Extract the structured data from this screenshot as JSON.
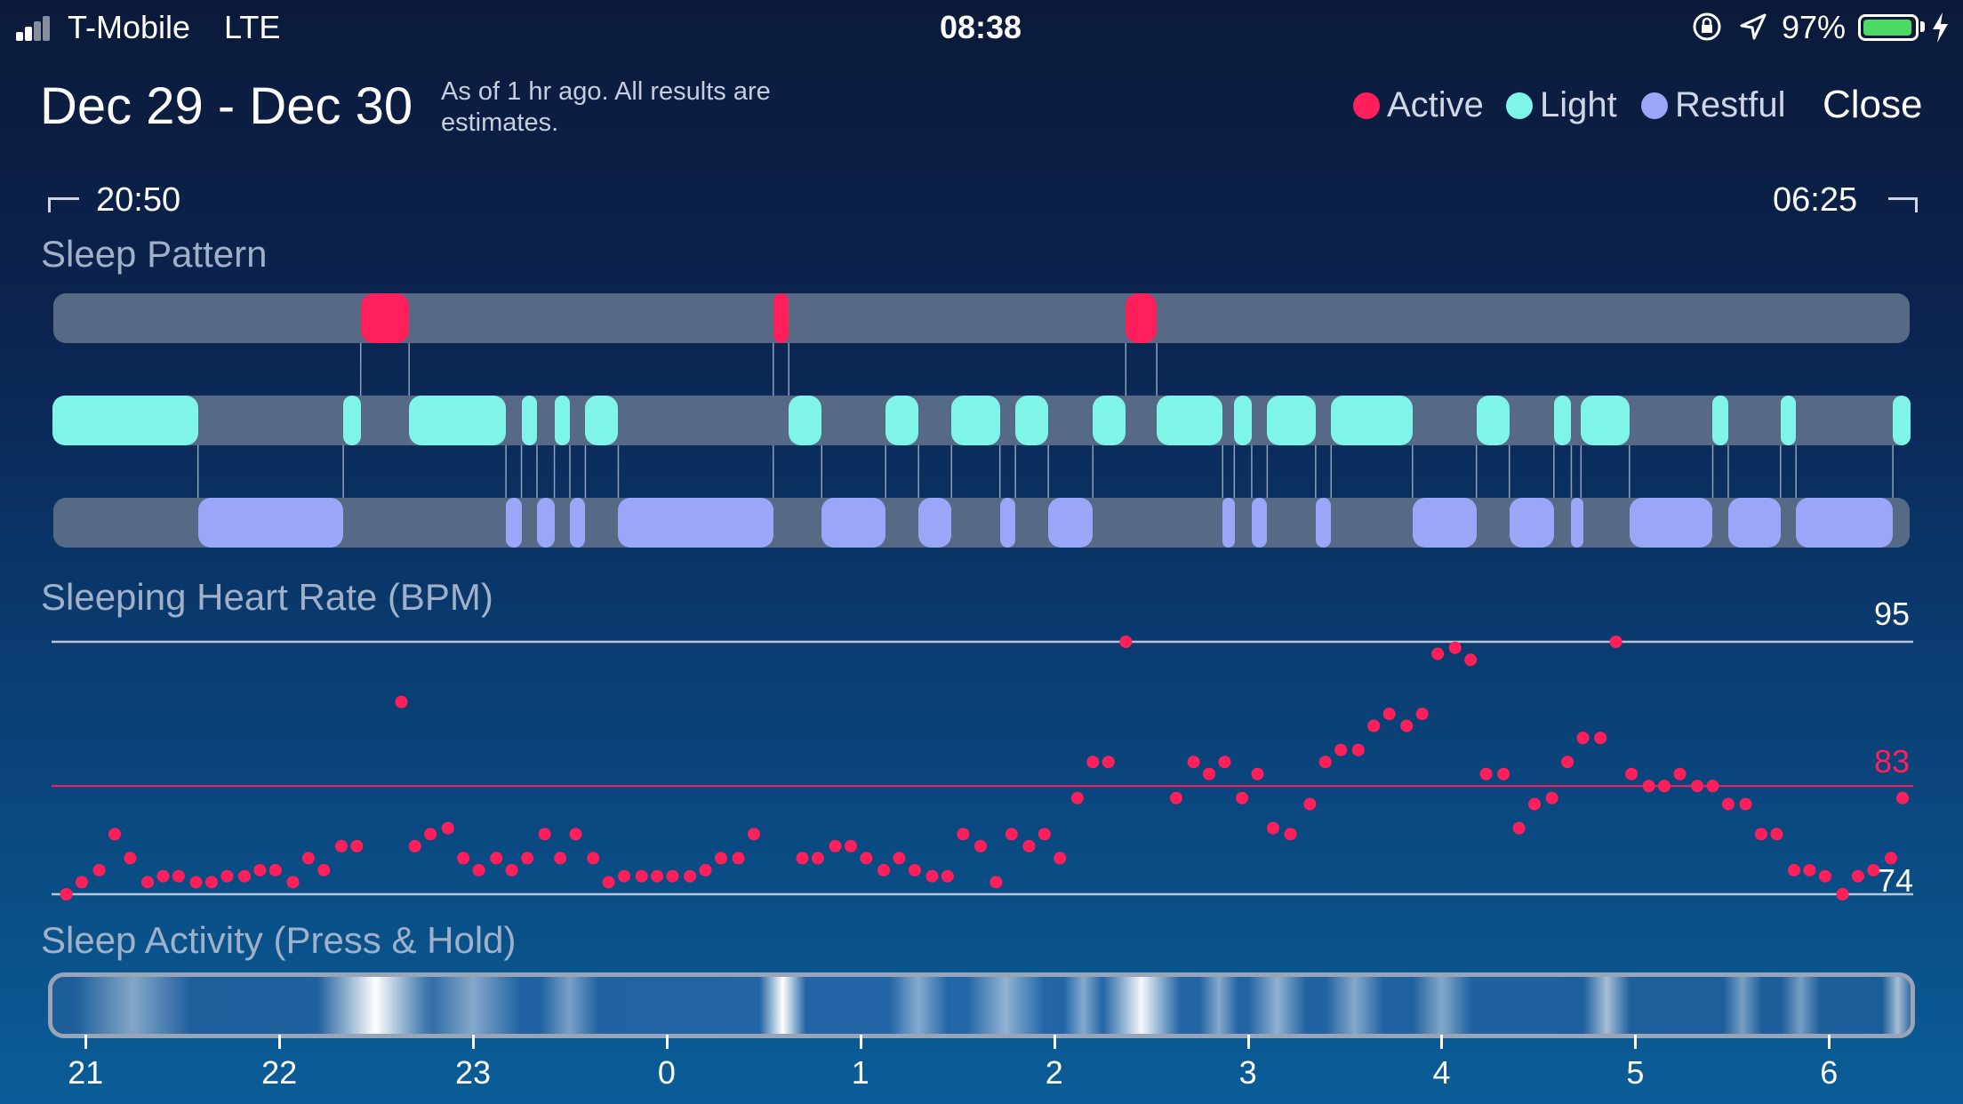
{
  "status_bar": {
    "carrier": "T-Mobile",
    "network": "LTE",
    "time": "08:38",
    "battery": "97%",
    "battery_level": 0.97
  },
  "header": {
    "date_range": "Dec 29 - Dec 30",
    "note": "As of 1 hr ago. All results are estimates.",
    "legend": [
      {
        "label": "Active",
        "color": "#ff1f5a"
      },
      {
        "label": "Light",
        "color": "#7ff5e9"
      },
      {
        "label": "Restful",
        "color": "#9aa6f7"
      }
    ],
    "close_label": "Close"
  },
  "times": {
    "start": "20:50",
    "end": "06:25"
  },
  "sections": {
    "sleep_pattern": "Sleep Pattern",
    "heart_rate": "Sleeping Heart Rate (BPM)",
    "activity": "Sleep Activity (Press & Hold)"
  },
  "chart_data": [
    {
      "type": "bar",
      "title": "Sleep Pattern",
      "x_unit": "hours",
      "xlim": [
        20.833,
        6.417
      ],
      "series": [
        {
          "name": "Active",
          "color": "#ff1f5a",
          "intervals": [
            [
              22.42,
              22.67
            ],
            [
              0.55,
              0.63
            ],
            [
              2.37,
              2.53
            ]
          ]
        },
        {
          "name": "Light",
          "color": "#7ff5e9",
          "intervals": [
            [
              20.83,
              21.58
            ],
            [
              22.33,
              22.42
            ],
            [
              22.67,
              23.17
            ],
            [
              23.25,
              23.33
            ],
            [
              23.42,
              23.5
            ],
            [
              23.58,
              23.75
            ],
            [
              0.63,
              0.8
            ],
            [
              1.13,
              1.3
            ],
            [
              1.47,
              1.72
            ],
            [
              1.8,
              1.97
            ],
            [
              2.2,
              2.37
            ],
            [
              2.53,
              2.87
            ],
            [
              2.93,
              3.02
            ],
            [
              3.1,
              3.35
            ],
            [
              3.43,
              3.85
            ],
            [
              4.18,
              4.35
            ],
            [
              4.58,
              4.67
            ],
            [
              4.72,
              4.97
            ],
            [
              5.4,
              5.48
            ],
            [
              5.75,
              5.83
            ],
            [
              6.33,
              6.42
            ]
          ]
        },
        {
          "name": "Restful",
          "color": "#9aa6f7",
          "intervals": [
            [
              21.58,
              22.33
            ],
            [
              23.17,
              23.25
            ],
            [
              23.33,
              23.42
            ],
            [
              23.5,
              23.58
            ],
            [
              23.75,
              0.55
            ],
            [
              0.8,
              1.13
            ],
            [
              1.3,
              1.47
            ],
            [
              1.72,
              1.8
            ],
            [
              1.97,
              2.2
            ],
            [
              2.87,
              2.93
            ],
            [
              3.02,
              3.1
            ],
            [
              3.35,
              3.43
            ],
            [
              3.85,
              4.18
            ],
            [
              4.35,
              4.58
            ],
            [
              4.67,
              4.72
            ],
            [
              4.97,
              5.4
            ],
            [
              5.48,
              5.75
            ],
            [
              5.83,
              6.33
            ]
          ]
        }
      ]
    },
    {
      "type": "scatter",
      "title": "Sleeping Heart Rate (BPM)",
      "ylim": [
        74,
        95
      ],
      "labels": {
        "max": "95",
        "avg": "83",
        "min": "74"
      },
      "reference_lines": [
        95,
        83,
        74
      ],
      "x_unit": "hours",
      "points": [
        [
          20.9,
          74
        ],
        [
          20.98,
          75
        ],
        [
          21.07,
          76
        ],
        [
          21.15,
          79
        ],
        [
          21.23,
          77
        ],
        [
          21.32,
          75
        ],
        [
          21.4,
          75.5
        ],
        [
          21.48,
          75.5
        ],
        [
          21.57,
          75
        ],
        [
          21.65,
          75
        ],
        [
          21.73,
          75.5
        ],
        [
          21.82,
          75.5
        ],
        [
          21.9,
          76
        ],
        [
          21.98,
          76
        ],
        [
          22.07,
          75
        ],
        [
          22.15,
          77
        ],
        [
          22.23,
          76
        ],
        [
          22.32,
          78
        ],
        [
          22.4,
          78
        ],
        [
          22.63,
          90
        ],
        [
          22.7,
          78
        ],
        [
          22.78,
          79
        ],
        [
          22.87,
          79.5
        ],
        [
          22.95,
          77
        ],
        [
          23.03,
          76
        ],
        [
          23.12,
          77
        ],
        [
          23.2,
          76
        ],
        [
          23.28,
          77
        ],
        [
          23.37,
          79
        ],
        [
          23.45,
          77
        ],
        [
          23.53,
          79
        ],
        [
          23.62,
          77
        ],
        [
          23.7,
          75
        ],
        [
          23.78,
          75.5
        ],
        [
          23.87,
          75.5
        ],
        [
          23.95,
          75.5
        ],
        [
          0.03,
          75.5
        ],
        [
          0.12,
          75.5
        ],
        [
          0.2,
          76
        ],
        [
          0.28,
          77
        ],
        [
          0.37,
          77
        ],
        [
          0.45,
          79
        ],
        [
          0.7,
          77
        ],
        [
          0.78,
          77
        ],
        [
          0.87,
          78
        ],
        [
          0.95,
          78
        ],
        [
          1.03,
          77
        ],
        [
          1.12,
          76
        ],
        [
          1.2,
          77
        ],
        [
          1.28,
          76
        ],
        [
          1.37,
          75.5
        ],
        [
          1.45,
          75.5
        ],
        [
          1.53,
          79
        ],
        [
          1.62,
          78
        ],
        [
          1.7,
          75
        ],
        [
          1.78,
          79
        ],
        [
          1.87,
          78
        ],
        [
          1.95,
          79
        ],
        [
          2.03,
          77
        ],
        [
          2.12,
          82
        ],
        [
          2.2,
          85
        ],
        [
          2.28,
          85
        ],
        [
          2.37,
          95
        ],
        [
          2.63,
          82
        ],
        [
          2.72,
          85
        ],
        [
          2.8,
          84
        ],
        [
          2.88,
          85
        ],
        [
          2.97,
          82
        ],
        [
          3.05,
          84
        ],
        [
          3.13,
          79.5
        ],
        [
          3.22,
          79
        ],
        [
          3.32,
          81.5
        ],
        [
          3.4,
          85
        ],
        [
          3.48,
          86
        ],
        [
          3.57,
          86
        ],
        [
          3.65,
          88
        ],
        [
          3.73,
          89
        ],
        [
          3.82,
          88
        ],
        [
          3.9,
          89
        ],
        [
          3.98,
          94
        ],
        [
          4.07,
          94.5
        ],
        [
          4.15,
          93.5
        ],
        [
          4.23,
          84
        ],
        [
          4.32,
          84
        ],
        [
          4.4,
          79.5
        ],
        [
          4.48,
          81.5
        ],
        [
          4.57,
          82
        ],
        [
          4.65,
          85
        ],
        [
          4.73,
          87
        ],
        [
          4.82,
          87
        ],
        [
          4.9,
          95
        ],
        [
          4.98,
          84
        ],
        [
          5.07,
          83
        ],
        [
          5.15,
          83
        ],
        [
          5.23,
          84
        ],
        [
          5.32,
          83
        ],
        [
          5.4,
          83
        ],
        [
          5.48,
          81.5
        ],
        [
          5.57,
          81.5
        ],
        [
          5.65,
          79
        ],
        [
          5.73,
          79
        ],
        [
          5.82,
          76
        ],
        [
          5.9,
          76
        ],
        [
          5.98,
          75.5
        ],
        [
          6.07,
          74
        ],
        [
          6.15,
          75.5
        ],
        [
          6.23,
          76
        ],
        [
          6.32,
          77
        ],
        [
          6.38,
          82
        ]
      ]
    }
  ],
  "activity": {
    "hot_spots": [
      {
        "center": 22.5,
        "width": 0.3,
        "intensity": 1.0
      },
      {
        "center": 0.6,
        "width": 0.12,
        "intensity": 1.0
      },
      {
        "center": 2.45,
        "width": 0.2,
        "intensity": 0.95
      },
      {
        "center": 21.25,
        "width": 0.3,
        "intensity": 0.45
      },
      {
        "center": 23.0,
        "width": 0.25,
        "intensity": 0.45
      },
      {
        "center": 23.5,
        "width": 0.15,
        "intensity": 0.4
      },
      {
        "center": 1.3,
        "width": 0.15,
        "intensity": 0.45
      },
      {
        "center": 1.75,
        "width": 0.2,
        "intensity": 0.5
      },
      {
        "center": 2.15,
        "width": 0.1,
        "intensity": 0.45
      },
      {
        "center": 2.85,
        "width": 0.1,
        "intensity": 0.45
      },
      {
        "center": 3.15,
        "width": 0.15,
        "intensity": 0.5
      },
      {
        "center": 3.55,
        "width": 0.15,
        "intensity": 0.45
      },
      {
        "center": 4.0,
        "width": 0.15,
        "intensity": 0.45
      },
      {
        "center": 4.85,
        "width": 0.12,
        "intensity": 0.6
      },
      {
        "center": 5.55,
        "width": 0.1,
        "intensity": 0.4
      },
      {
        "center": 5.85,
        "width": 0.1,
        "intensity": 0.4
      },
      {
        "center": 6.35,
        "width": 0.08,
        "intensity": 0.6
      }
    ]
  },
  "axis": {
    "ticks": [
      {
        "label": "21",
        "hour": 21
      },
      {
        "label": "22",
        "hour": 22
      },
      {
        "label": "23",
        "hour": 23
      },
      {
        "label": "0",
        "hour": 24
      },
      {
        "label": "1",
        "hour": 25
      },
      {
        "label": "2",
        "hour": 26
      },
      {
        "label": "3",
        "hour": 27
      },
      {
        "label": "4",
        "hour": 28
      },
      {
        "label": "5",
        "hour": 29
      },
      {
        "label": "6",
        "hour": 30
      }
    ]
  }
}
